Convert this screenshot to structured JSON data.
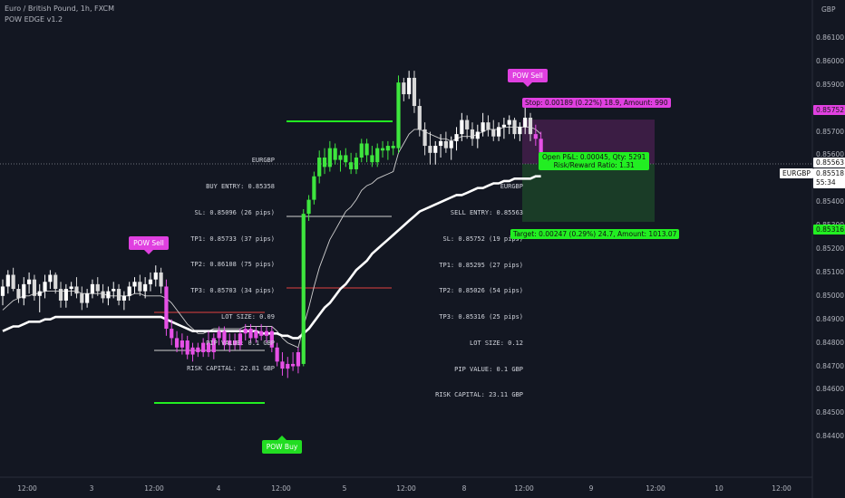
{
  "header": {
    "symbol_line": "Euro / British Pound, 1h, FXCM",
    "indicator": "POW EDGE v1.2"
  },
  "currency": "GBP",
  "price_axis": {
    "ticks": [
      "0.86100",
      "0.86000",
      "0.85900",
      "0.85800",
      "0.85700",
      "0.85600",
      "0.85500",
      "0.85400",
      "0.85300",
      "0.85200",
      "0.85100",
      "0.85000",
      "0.84900",
      "0.84800",
      "0.84700",
      "0.84600",
      "0.84500",
      "0.84400"
    ],
    "stop_level": "0.85752",
    "entry_level": "0.85563",
    "symbol_badge": "EURGBP",
    "last_price": "0.85518",
    "countdown": "55:34",
    "target_level": "0.85316"
  },
  "time_axis": {
    "labels": [
      "12:00",
      "3",
      "12:00",
      "4",
      "12:00",
      "5",
      "12:00",
      "8",
      "12:00",
      "9",
      "12:00",
      "10",
      "12:00"
    ]
  },
  "signals": {
    "sell1": "POW Sell",
    "buy": "POW Buy",
    "sell2": "POW Sell"
  },
  "buy_info": [
    "EURGBP",
    "BUY ENTRY: 0.85358",
    "SL: 0.85096 (26 pips)",
    "TP1: 0.85733 (37 pips)",
    "TP2: 0.86108 (75 pips)",
    "TP3: 0.85703 (34 pips)",
    "LOT SIZE: 0.09",
    "PIP VALUE: 0.1 GBP",
    "RISK CAPITAL: 22.81 GBP"
  ],
  "sell_info": [
    "EURGBP",
    "SELL ENTRY: 0.85563",
    "SL: 0.85752 (19 pips)",
    "TP1: 0.85295 (27 pips)",
    "TP2: 0.85026 (54 pips)",
    "TP3: 0.85316 (25 pips)",
    "LOT SIZE: 0.12",
    "PIP VALUE: 0.1 GBP",
    "RISK CAPITAL: 23.11 GBP"
  ],
  "position": {
    "stop_label": "Stop: 0.00189 (0.22%) 18.9, Amount: 990",
    "pnl_label": "Open P&L: 0.00045, Qty: 5291",
    "rr_label": "Risk/Reward Ratio: 1.31",
    "target_label": "Target: 0.00247 (0.29%) 24.7, Amount: 1013.07"
  },
  "colors": {
    "up": "#3ee63e",
    "down": "#e650e6",
    "neutral_up": "#ffffff",
    "neutral_down": "#d9d9d9",
    "sell_signal": "#e040e0",
    "buy_signal": "#22dd22"
  },
  "chart_data": {
    "type": "candlestick",
    "y_range": [
      0.844,
      0.8613
    ],
    "candles": [
      [
        0.85,
        0.8507,
        0.8496,
        0.8504,
        "n"
      ],
      [
        0.8504,
        0.8511,
        0.8501,
        0.8509,
        "n"
      ],
      [
        0.8509,
        0.8512,
        0.8502,
        0.8503,
        "n"
      ],
      [
        0.8503,
        0.8505,
        0.8497,
        0.8499,
        "n"
      ],
      [
        0.8499,
        0.8508,
        0.8496,
        0.8505,
        "n"
      ],
      [
        0.8505,
        0.851,
        0.8501,
        0.8507,
        "n"
      ],
      [
        0.8507,
        0.8509,
        0.8498,
        0.85,
        "n"
      ],
      [
        0.85,
        0.8505,
        0.8493,
        0.8502,
        "n"
      ],
      [
        0.8502,
        0.8509,
        0.8499,
        0.8506,
        "n"
      ],
      [
        0.8506,
        0.8511,
        0.8503,
        0.8509,
        "n"
      ],
      [
        0.8509,
        0.851,
        0.8501,
        0.8503,
        "n"
      ],
      [
        0.8503,
        0.8506,
        0.8495,
        0.8498,
        "n"
      ],
      [
        0.8498,
        0.8505,
        0.8495,
        0.8503,
        "n"
      ],
      [
        0.8503,
        0.8506,
        0.85,
        0.8504,
        "n"
      ],
      [
        0.8504,
        0.8508,
        0.8499,
        0.8501,
        "n"
      ],
      [
        0.8501,
        0.8504,
        0.8494,
        0.8497,
        "n"
      ],
      [
        0.8497,
        0.8503,
        0.8495,
        0.8501,
        "n"
      ],
      [
        0.8501,
        0.8507,
        0.8499,
        0.8505,
        "n"
      ],
      [
        0.8505,
        0.8508,
        0.85,
        0.8502,
        "n"
      ],
      [
        0.8502,
        0.8505,
        0.8497,
        0.8499,
        "n"
      ],
      [
        0.8499,
        0.8504,
        0.8496,
        0.8502,
        "n"
      ],
      [
        0.8502,
        0.8506,
        0.8499,
        0.8503,
        "n"
      ],
      [
        0.8503,
        0.8505,
        0.8496,
        0.8498,
        "n"
      ],
      [
        0.8498,
        0.8502,
        0.8494,
        0.85,
        "n"
      ],
      [
        0.85,
        0.8506,
        0.8498,
        0.8504,
        "n"
      ],
      [
        0.8504,
        0.8508,
        0.8501,
        0.8506,
        "n"
      ],
      [
        0.8506,
        0.8509,
        0.85,
        0.8502,
        "n"
      ],
      [
        0.8502,
        0.8508,
        0.8499,
        0.8505,
        "n"
      ],
      [
        0.8505,
        0.851,
        0.8502,
        0.8507,
        "n"
      ],
      [
        0.8507,
        0.8513,
        0.8504,
        0.851,
        "n"
      ],
      [
        0.851,
        0.8512,
        0.8501,
        0.8504,
        "n"
      ],
      [
        0.8504,
        0.8507,
        0.8483,
        0.8486,
        "s"
      ],
      [
        0.8486,
        0.849,
        0.8479,
        0.8482,
        "s"
      ],
      [
        0.8482,
        0.8485,
        0.8476,
        0.8478,
        "s"
      ],
      [
        0.8478,
        0.8484,
        0.8475,
        0.8481,
        "s"
      ],
      [
        0.8481,
        0.8483,
        0.8473,
        0.8475,
        "s"
      ],
      [
        0.8475,
        0.848,
        0.8472,
        0.8478,
        "s"
      ],
      [
        0.8478,
        0.848,
        0.8474,
        0.8476,
        "s"
      ],
      [
        0.8476,
        0.8482,
        0.8474,
        0.848,
        "s"
      ],
      [
        0.848,
        0.8485,
        0.8474,
        0.8476,
        "s"
      ],
      [
        0.8476,
        0.8484,
        0.8473,
        0.8482,
        "s"
      ],
      [
        0.8482,
        0.8487,
        0.8479,
        0.8485,
        "s"
      ],
      [
        0.8485,
        0.8487,
        0.8477,
        0.8479,
        "s"
      ],
      [
        0.8479,
        0.8484,
        0.8476,
        0.8481,
        "s"
      ],
      [
        0.8481,
        0.8484,
        0.8477,
        0.8479,
        "s"
      ],
      [
        0.8479,
        0.8486,
        0.8477,
        0.8484,
        "s"
      ],
      [
        0.8484,
        0.8488,
        0.8481,
        0.8486,
        "s"
      ],
      [
        0.8486,
        0.8488,
        0.848,
        0.8482,
        "s"
      ],
      [
        0.8482,
        0.8487,
        0.848,
        0.8485,
        "s"
      ],
      [
        0.8485,
        0.8488,
        0.8481,
        0.8483,
        "s"
      ],
      [
        0.8483,
        0.8487,
        0.848,
        0.8485,
        "s"
      ],
      [
        0.8485,
        0.8487,
        0.8476,
        0.8478,
        "s"
      ],
      [
        0.8478,
        0.848,
        0.847,
        0.8472,
        "s"
      ],
      [
        0.8472,
        0.8476,
        0.8466,
        0.8469,
        "s"
      ],
      [
        0.8469,
        0.8474,
        0.8465,
        0.8471,
        "s"
      ],
      [
        0.8471,
        0.8476,
        0.8468,
        0.847,
        "s"
      ],
      [
        0.847,
        0.8478,
        0.8467,
        0.8476,
        "s"
      ],
      [
        0.8471,
        0.8537,
        0.847,
        0.8535,
        "b"
      ],
      [
        0.8535,
        0.8543,
        0.8532,
        0.8541,
        "b"
      ],
      [
        0.8541,
        0.8553,
        0.8539,
        0.8551,
        "b"
      ],
      [
        0.8551,
        0.8562,
        0.8548,
        0.8559,
        "b"
      ],
      [
        0.8559,
        0.8563,
        0.8552,
        0.8555,
        "b"
      ],
      [
        0.8555,
        0.8566,
        0.8553,
        0.8563,
        "b"
      ],
      [
        0.8563,
        0.8565,
        0.8556,
        0.8558,
        "b"
      ],
      [
        0.8558,
        0.8562,
        0.8553,
        0.856,
        "b"
      ],
      [
        0.856,
        0.8563,
        0.8555,
        0.8557,
        "b"
      ],
      [
        0.8557,
        0.8561,
        0.8552,
        0.8554,
        "b"
      ],
      [
        0.8554,
        0.8561,
        0.8552,
        0.8559,
        "b"
      ],
      [
        0.8559,
        0.8567,
        0.8557,
        0.8565,
        "b"
      ],
      [
        0.8565,
        0.8567,
        0.8557,
        0.856,
        "b"
      ],
      [
        0.856,
        0.8564,
        0.8555,
        0.8557,
        "b"
      ],
      [
        0.8557,
        0.8565,
        0.8555,
        0.8563,
        "b"
      ],
      [
        0.8563,
        0.8566,
        0.8559,
        0.8562,
        "b"
      ],
      [
        0.8562,
        0.8566,
        0.8558,
        0.8564,
        "b"
      ],
      [
        0.8564,
        0.8566,
        0.856,
        0.8563,
        "b"
      ],
      [
        0.8563,
        0.8594,
        0.8561,
        0.8591,
        "b"
      ],
      [
        0.8591,
        0.8593,
        0.8583,
        0.8586,
        "n"
      ],
      [
        0.8586,
        0.8596,
        0.8584,
        0.8593,
        "n"
      ],
      [
        0.8593,
        0.8596,
        0.8578,
        0.8581,
        "n"
      ],
      [
        0.8581,
        0.8584,
        0.8568,
        0.8571,
        "n"
      ],
      [
        0.8571,
        0.8574,
        0.856,
        0.8564,
        "n"
      ],
      [
        0.8564,
        0.857,
        0.8556,
        0.8561,
        "n"
      ],
      [
        0.8561,
        0.8566,
        0.8556,
        0.8564,
        "n"
      ],
      [
        0.8564,
        0.8569,
        0.8559,
        0.8566,
        "n"
      ],
      [
        0.8566,
        0.857,
        0.8561,
        0.8563,
        "n"
      ],
      [
        0.8563,
        0.8568,
        0.8558,
        0.8566,
        "n"
      ],
      [
        0.8566,
        0.8572,
        0.8562,
        0.8569,
        "n"
      ],
      [
        0.8569,
        0.8578,
        0.8566,
        0.8575,
        "n"
      ],
      [
        0.8575,
        0.8577,
        0.8567,
        0.8571,
        "n"
      ],
      [
        0.8571,
        0.8574,
        0.8564,
        0.8567,
        "n"
      ],
      [
        0.8567,
        0.8573,
        0.8563,
        0.857,
        "n"
      ],
      [
        0.857,
        0.8578,
        0.8568,
        0.8574,
        "n"
      ],
      [
        0.8574,
        0.8577,
        0.8568,
        0.8571,
        "n"
      ],
      [
        0.8571,
        0.8575,
        0.8566,
        0.8568,
        "n"
      ],
      [
        0.8568,
        0.8574,
        0.8566,
        0.8572,
        "n"
      ],
      [
        0.8572,
        0.8576,
        0.8567,
        0.8573,
        "n"
      ],
      [
        0.8573,
        0.8577,
        0.8569,
        0.8575,
        "n"
      ],
      [
        0.8575,
        0.8576,
        0.8567,
        0.8569,
        "n"
      ],
      [
        0.8569,
        0.8574,
        0.8566,
        0.8572,
        "n"
      ],
      [
        0.8572,
        0.8581,
        0.8569,
        0.8576,
        "n"
      ],
      [
        0.8576,
        0.8578,
        0.8566,
        0.8569,
        "n"
      ],
      [
        0.8569,
        0.8573,
        0.8564,
        0.8567,
        "s"
      ],
      [
        0.8567,
        0.857,
        0.8556,
        0.8558,
        "s"
      ]
    ],
    "ema_white": [
      0.8494,
      0.8496,
      0.8498,
      0.8499,
      0.85,
      0.85,
      0.8501,
      0.8501,
      0.8502,
      0.8502,
      0.8502,
      0.8502,
      0.8502,
      0.8502,
      0.8502,
      0.8501,
      0.8501,
      0.8501,
      0.8501,
      0.8501,
      0.85,
      0.85,
      0.85,
      0.85,
      0.85,
      0.8501,
      0.8501,
      0.85,
      0.85,
      0.85,
      0.85,
      0.8499,
      0.8497,
      0.8494,
      0.8491,
      0.8488,
      0.8486,
      0.8484,
      0.8484,
      0.8485,
      0.8486,
      0.8486,
      0.8486,
      0.8486,
      0.8486,
      0.8486,
      0.8487,
      0.8487,
      0.8487,
      0.8487,
      0.8487,
      0.8487,
      0.8485,
      0.8482,
      0.848,
      0.8479,
      0.8478,
      0.8487,
      0.8495,
      0.8504,
      0.8512,
      0.8518,
      0.8524,
      0.8528,
      0.8532,
      0.8536,
      0.8538,
      0.8541,
      0.8545,
      0.8547,
      0.8548,
      0.855,
      0.8551,
      0.8552,
      0.8553,
      0.8561,
      0.8565,
      0.8569,
      0.8571,
      0.8571,
      0.857,
      0.8569,
      0.8568,
      0.8567,
      0.8567,
      0.8566,
      0.8567,
      0.8568,
      0.8568,
      0.8568,
      0.8569,
      0.857,
      0.8571,
      0.8571,
      0.8571,
      0.8572,
      0.8572,
      0.8572,
      0.8572,
      0.8572,
      0.8572,
      0.8571,
      0.8569
    ],
    "ma_thick": [
      0.8485,
      0.8486,
      0.8487,
      0.8487,
      0.8488,
      0.8489,
      0.8489,
      0.8489,
      0.849,
      0.849,
      0.8491,
      0.8491,
      0.8491,
      0.8491,
      0.8491,
      0.8491,
      0.8491,
      0.8491,
      0.8491,
      0.8491,
      0.8491,
      0.8491,
      0.8491,
      0.8491,
      0.8491,
      0.8491,
      0.8491,
      0.8491,
      0.8491,
      0.8491,
      0.8491,
      0.849,
      0.8489,
      0.8488,
      0.8487,
      0.8486,
      0.8485,
      0.8485,
      0.8485,
      0.8485,
      0.8485,
      0.8485,
      0.8485,
      0.8485,
      0.8485,
      0.8485,
      0.8485,
      0.8485,
      0.8485,
      0.8484,
      0.8484,
      0.8484,
      0.8484,
      0.8483,
      0.8483,
      0.8482,
      0.8482,
      0.8484,
      0.8486,
      0.8489,
      0.8492,
      0.8495,
      0.8497,
      0.85,
      0.8503,
      0.8505,
      0.8508,
      0.8511,
      0.8513,
      0.8515,
      0.8518,
      0.852,
      0.8522,
      0.8524,
      0.8526,
      0.8528,
      0.853,
      0.8532,
      0.8534,
      0.8536,
      0.8537,
      0.8538,
      0.8539,
      0.854,
      0.8541,
      0.8542,
      0.8543,
      0.8543,
      0.8544,
      0.8545,
      0.8546,
      0.8546,
      0.8547,
      0.8548,
      0.8548,
      0.8549,
      0.8549,
      0.855,
      0.855,
      0.855,
      0.855,
      0.8551,
      0.8551
    ]
  }
}
